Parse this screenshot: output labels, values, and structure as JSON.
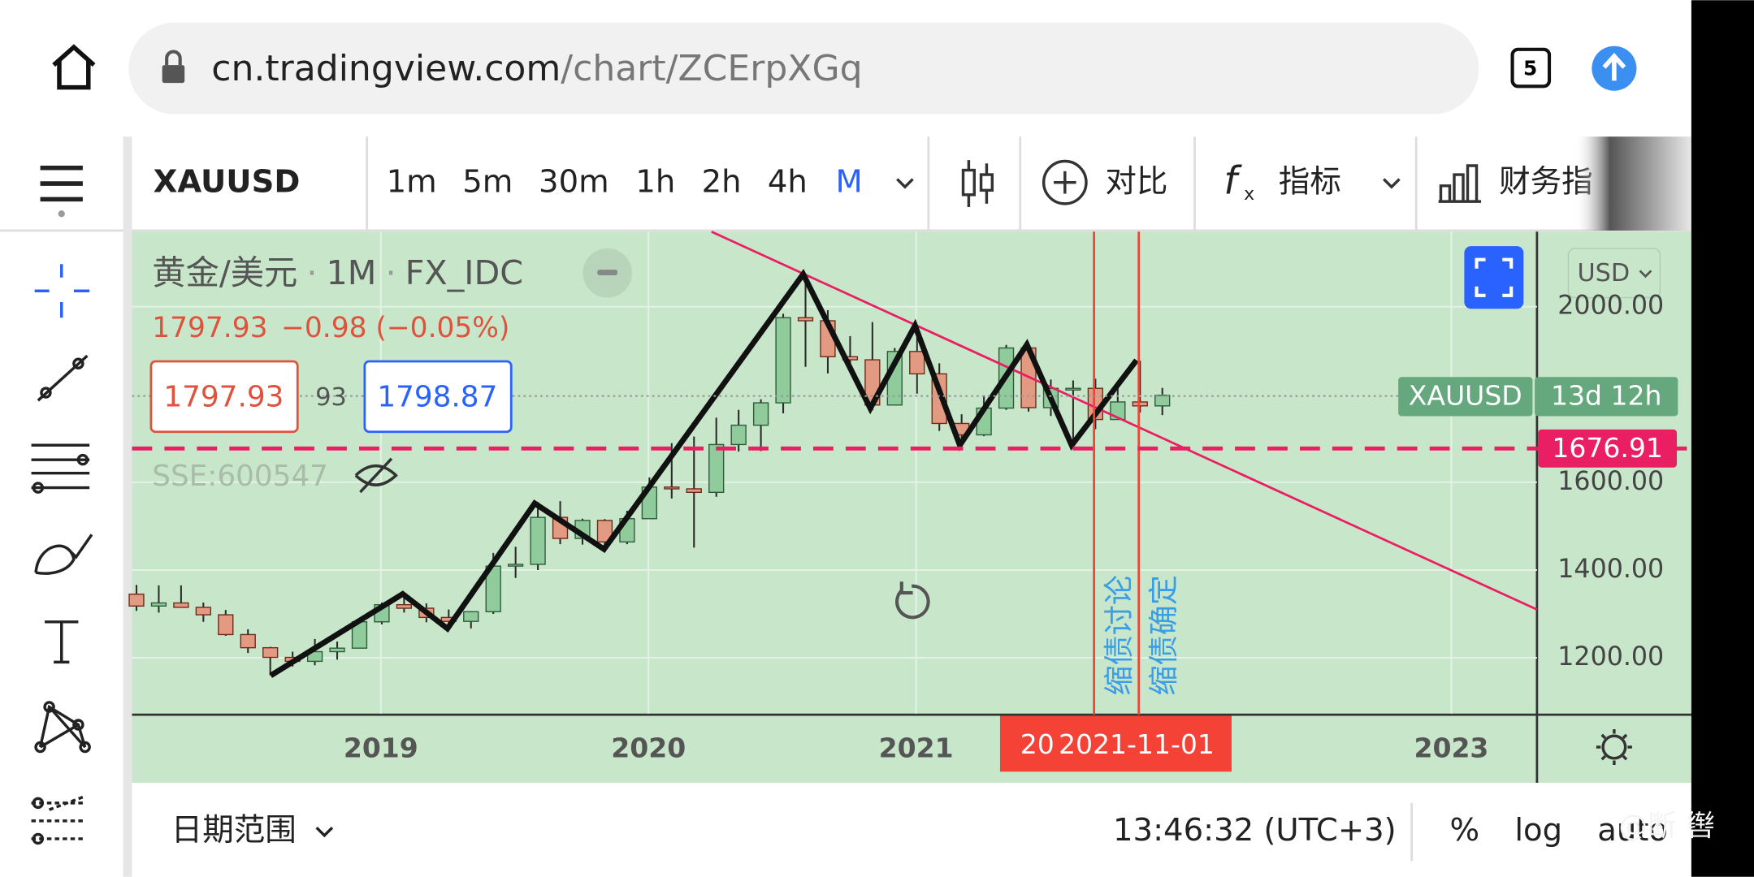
{
  "browser": {
    "url_host": "cn.tradingview.com",
    "url_path": "/chart/ZCErpXGq",
    "tab_count": "5"
  },
  "toolbar": {
    "symbol": "XAUUSD",
    "intervals": [
      "1m",
      "5m",
      "30m",
      "1h",
      "2h",
      "4h",
      "M"
    ],
    "compare": "对比",
    "indicators": "指标",
    "financials": "财务指"
  },
  "chart_data": {
    "type": "candlestick",
    "title": "黄金/美元",
    "interval": "1M",
    "source": "FX_IDC",
    "separator": "·",
    "last_text": "1797.93",
    "change": "−0.98 (−0.05%)",
    "bid": "1797.93",
    "spread": "93",
    "ask": "1798.87",
    "overlay": "SSE:600547",
    "currency": "USD",
    "up_color": "#8fcb9b",
    "down_color": "#e39a82",
    "ohlc": [
      [
        1345,
        1366,
        1307,
        1318
      ],
      [
        1318,
        1365,
        1303,
        1325
      ],
      [
        1325,
        1365,
        1314,
        1315
      ],
      [
        1315,
        1326,
        1282,
        1298
      ],
      [
        1298,
        1309,
        1250,
        1253
      ],
      [
        1253,
        1265,
        1211,
        1223
      ],
      [
        1223,
        1225,
        1160,
        1201
      ],
      [
        1201,
        1214,
        1180,
        1192
      ],
      [
        1192,
        1243,
        1183,
        1214
      ],
      [
        1214,
        1237,
        1196,
        1222
      ],
      [
        1222,
        1284,
        1221,
        1282
      ],
      [
        1282,
        1326,
        1276,
        1321
      ],
      [
        1321,
        1346,
        1303,
        1313
      ],
      [
        1313,
        1324,
        1281,
        1292
      ],
      [
        1292,
        1310,
        1266,
        1283
      ],
      [
        1283,
        1306,
        1267,
        1305
      ],
      [
        1305,
        1439,
        1300,
        1409
      ],
      [
        1409,
        1453,
        1382,
        1413
      ],
      [
        1413,
        1555,
        1400,
        1520
      ],
      [
        1520,
        1557,
        1459,
        1472
      ],
      [
        1472,
        1517,
        1458,
        1513
      ],
      [
        1513,
        1516,
        1445,
        1464
      ],
      [
        1464,
        1535,
        1459,
        1517
      ],
      [
        1517,
        1611,
        1517,
        1589
      ],
      [
        1589,
        1689,
        1563,
        1585
      ],
      [
        1585,
        1704,
        1451,
        1577
      ],
      [
        1577,
        1747,
        1567,
        1686
      ],
      [
        1686,
        1765,
        1670,
        1730
      ],
      [
        1730,
        1789,
        1671,
        1781
      ],
      [
        1781,
        1984,
        1757,
        1975
      ],
      [
        1975,
        2075,
        1863,
        1968
      ],
      [
        1968,
        1992,
        1848,
        1886
      ],
      [
        1886,
        1933,
        1860,
        1879
      ],
      [
        1879,
        1965,
        1764,
        1776
      ],
      [
        1776,
        1906,
        1775,
        1898
      ],
      [
        1898,
        1959,
        1802,
        1847
      ],
      [
        1847,
        1871,
        1717,
        1734
      ],
      [
        1734,
        1755,
        1677,
        1708
      ],
      [
        1708,
        1798,
        1705,
        1769
      ],
      [
        1769,
        1913,
        1765,
        1906
      ],
      [
        1906,
        1916,
        1761,
        1770
      ],
      [
        1770,
        1834,
        1751,
        1814
      ],
      [
        1814,
        1832,
        1688,
        1814
      ],
      [
        1814,
        1836,
        1721,
        1743
      ],
      [
        1743,
        1814,
        1746,
        1783
      ],
      [
        1783,
        1877,
        1759,
        1774
      ],
      [
        1774,
        1815,
        1753,
        1798
      ]
    ],
    "ylim": [
      1073,
      2171
    ],
    "yticks": [
      {
        "value": 2000,
        "label": "2000.00"
      },
      {
        "value": 1600,
        "label": "1600.00"
      },
      {
        "value": 1400,
        "label": "1400.00"
      },
      {
        "value": 1200,
        "label": "1200.00"
      }
    ],
    "xlim": [
      2018.07,
      2023.32
    ],
    "xticks": [
      2019,
      2020,
      2021,
      2023
    ],
    "hline": {
      "value": 1676.91,
      "label": "1676.91",
      "color": "#e91e63"
    },
    "last_tag": {
      "name": "XAUUSD",
      "countdown": "13d 12h"
    },
    "annotations": [
      "缩债讨论",
      "缩债确定"
    ],
    "cursor_date_partial": "20",
    "cursor_date": "2021-11-01"
  },
  "footer": {
    "date_range": "日期范围",
    "time": "13:46:32 (UTC+3)",
    "percent": "%",
    "log": "log",
    "auto": "auto"
  },
  "watermark": "@断 辔"
}
